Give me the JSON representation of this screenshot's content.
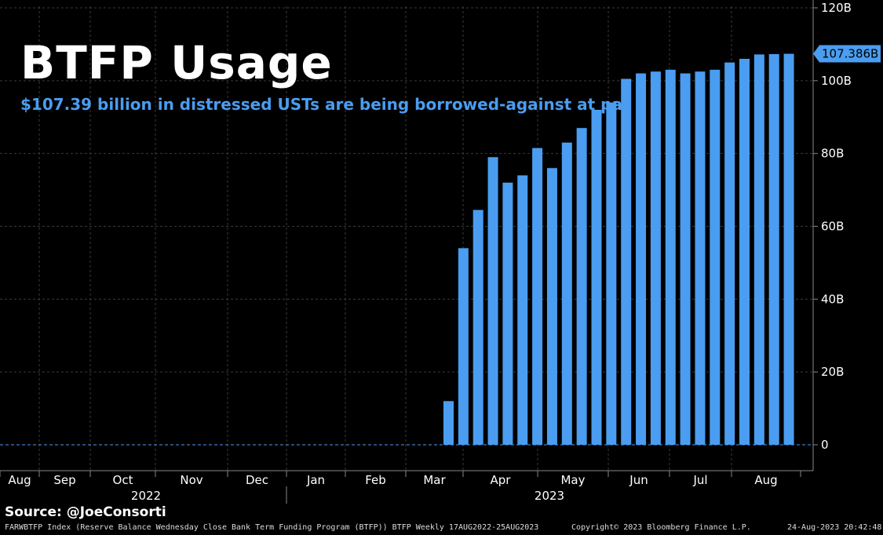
{
  "title": "BTFP Usage",
  "subtitle": "$107.39 billion in distressed USTs are being borrowed-against at par",
  "source": "Source: @JoeConsorti",
  "footer": {
    "description": "FARWBTFP Index (Reserve Balance Wednesday Close Bank Term Funding Program (BTFP)) BTFP  Weekly 17AUG2022-25AUG2023",
    "copyright": "Copyright© 2023 Bloomberg Finance L.P.",
    "timestamp": "24-Aug-2023 20:42:48"
  },
  "colors": {
    "bar": "#4a9df0",
    "grid": "#3a3a3a",
    "axis": "#888888",
    "background": "#000000",
    "label_bg": "#4a9df0"
  },
  "chart_data": {
    "type": "bar",
    "y_axis_position": "right",
    "ylim": [
      0,
      120
    ],
    "y_ticks": [
      "120B",
      "100B",
      "80B",
      "60B",
      "40B",
      "20B",
      "0"
    ],
    "y_tick_values": [
      120,
      100,
      80,
      60,
      40,
      20,
      0
    ],
    "last_value_label": "107.386B",
    "last_value": 107.386,
    "month_labels": [
      "Aug",
      "Sep",
      "Oct",
      "Nov",
      "Dec",
      "Jan",
      "Feb",
      "Mar",
      "Apr",
      "May",
      "Jun",
      "Jul",
      "Aug"
    ],
    "year_labels": [
      "2022",
      "2023"
    ],
    "zero_weeks": 30,
    "values": [
      12,
      54,
      64.5,
      79,
      72,
      74,
      81.5,
      76,
      83,
      87,
      92,
      94,
      100.5,
      102,
      102.5,
      103,
      102,
      102.5,
      103,
      105,
      106,
      107.2,
      107.3,
      107.386
    ],
    "grid": true
  }
}
